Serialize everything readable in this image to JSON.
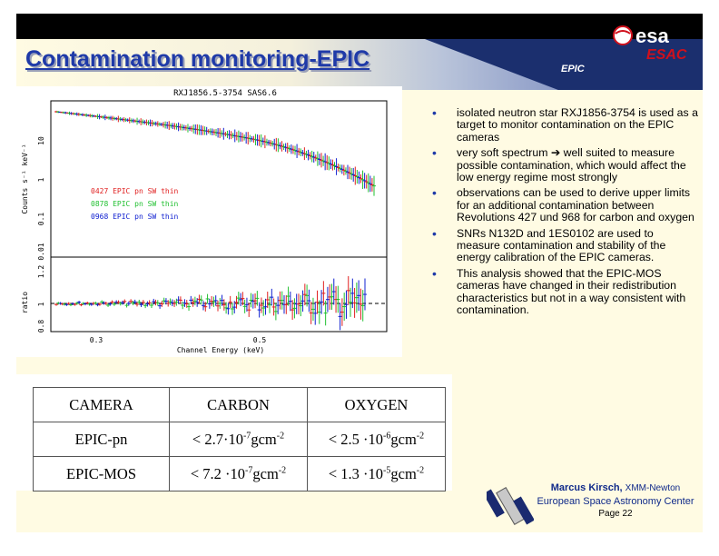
{
  "header": {
    "title": "Contamination monitoring-EPIC",
    "section": "EPIC",
    "logo_text": "esa",
    "logo_sub": "ESAC"
  },
  "plot": {
    "title": "RXJ1856.5-3754 SAS6.6",
    "ylabel_top": "Counts s⁻¹ keV⁻¹",
    "ylabel_bottom": "ratio",
    "xlabel": "Channel Energy (keV)",
    "xticks": [
      "0.3",
      "0.5"
    ],
    "yticks_top": [
      "10",
      "1",
      "0.1",
      "0.01"
    ],
    "yticks_bottom": [
      "1.2",
      "1",
      "0.8"
    ],
    "legend": [
      {
        "label": "0427 EPIC pn SW thin",
        "color": "#e02020"
      },
      {
        "label": "0878 EPIC pn SW thin",
        "color": "#20c030"
      },
      {
        "label": "0968 EPIC pn SW thin",
        "color": "#1020d0"
      }
    ]
  },
  "bullets": [
    "isolated neutron star RXJ1856-3754 is used as a target to monitor contamination on the EPIC cameras",
    "very soft spectrum ➔ well suited to measure possible contamination, which would affect the low energy regime most strongly",
    "observations can be used to derive upper limits for an additional contamination between Revolutions 427 und 968 for carbon and oxygen",
    "SNRs N132D and 1ES0102 are used to measure contamination and stability of the energy calibration of the EPIC cameras.",
    "This analysis showed that the EPIC-MOS cameras have changed in their redistribution characteristics but not in a way consistent with contamination."
  ],
  "table": {
    "headers": [
      "CAMERA",
      "CARBON",
      "OXYGEN"
    ],
    "rows": [
      {
        "camera": "EPIC-pn",
        "carbon": [
          "< 2.7·10",
          "-7",
          "gcm",
          "-2"
        ],
        "oxygen": [
          "< 2.5 ·10",
          "-6",
          "gcm",
          "-2"
        ]
      },
      {
        "camera": "EPIC-MOS",
        "carbon": [
          "< 7.2 ·10",
          "-7",
          "gcm",
          "-2"
        ],
        "oxygen": [
          "< 1.3 ·10",
          "-5",
          "gcm",
          "-2"
        ]
      }
    ]
  },
  "footer": {
    "author": "Marcus Kirsch, ",
    "mission": "XMM-Newton",
    "org": "European Space Astronomy Center",
    "page": "Page 22"
  },
  "colors": {
    "title": "#1f3aa8",
    "background": "#fffbe3",
    "header_dark": "#1b2f6e",
    "esa_red": "#d0101c"
  }
}
